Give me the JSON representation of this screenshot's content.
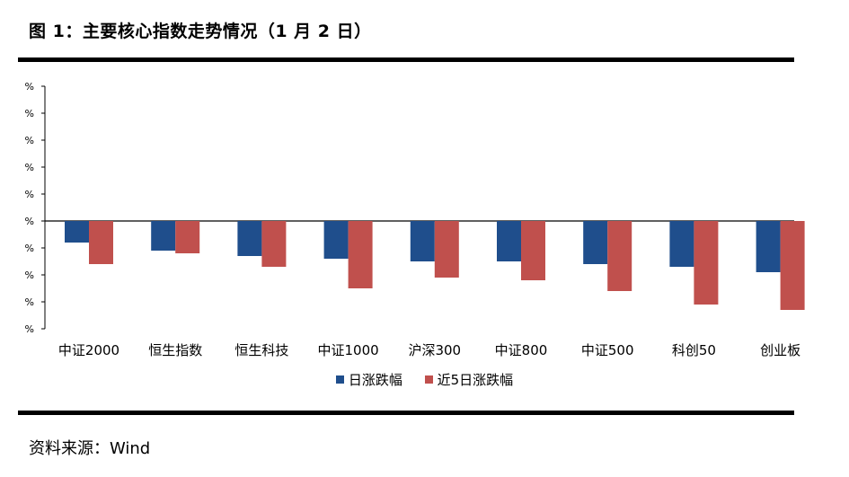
{
  "title": "图 1：主要核心指数走势情况（1 月 2 日）",
  "source": "资料来源：Wind",
  "chart_data": {
    "type": "bar",
    "categories": [
      "中证2000",
      "恒生指数",
      "恒生科技",
      "中证1000",
      "沪深300",
      "中证800",
      "中证500",
      "科创50",
      "创业板"
    ],
    "series": [
      {
        "name": "日涨跌幅",
        "color": "#1f4e8c",
        "values": [
          -0.8,
          -1.1,
          -1.3,
          -1.4,
          -1.5,
          -1.5,
          -1.6,
          -1.7,
          -1.9
        ]
      },
      {
        "name": "近5日涨跌幅",
        "color": "#c0504d",
        "values": [
          -1.6,
          -1.2,
          -1.7,
          -2.5,
          -2.1,
          -2.2,
          -2.6,
          -3.1,
          -3.3
        ]
      }
    ],
    "yticks": [
      "%",
      "%",
      "%",
      "%",
      "%",
      "%",
      "%",
      "%",
      "%",
      "%"
    ],
    "ylim": [
      -4,
      5
    ],
    "legend_position": "bottom-center",
    "grid": false
  }
}
